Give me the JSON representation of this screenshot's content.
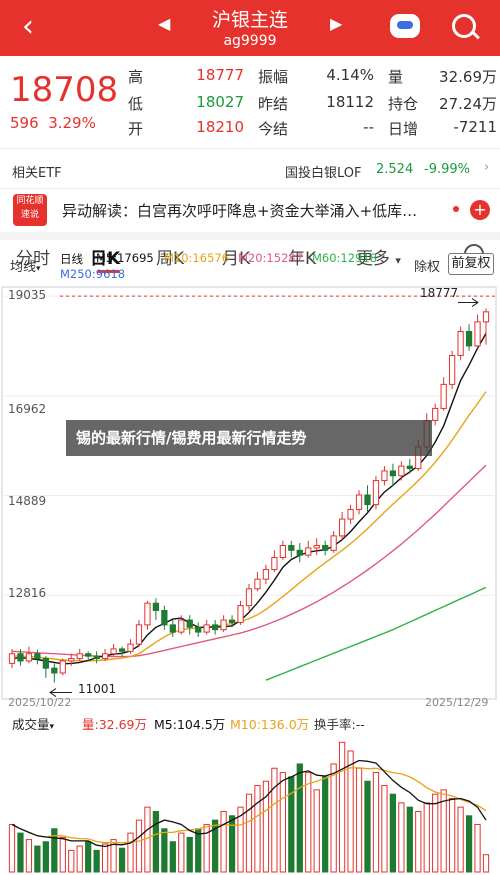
{
  "header": {
    "title": "沪银主连",
    "code": "ag9999",
    "back_icon": "chevron-left-icon",
    "prev_icon": "triangle-left-icon",
    "next_icon": "triangle-right-icon"
  },
  "quote": {
    "price": "18708",
    "change": "596",
    "change_pct": "3.29%",
    "grid": [
      {
        "label": "高",
        "value": "18777",
        "color": "#e5322d"
      },
      {
        "label": "振幅",
        "value": "4.14%",
        "color": "#333333"
      },
      {
        "label": "量",
        "value": "32.69万",
        "color": "#333333"
      },
      {
        "label": "低",
        "value": "18027",
        "color": "#1a9c3c"
      },
      {
        "label": "昨结",
        "value": "18112",
        "color": "#333333"
      },
      {
        "label": "持仓",
        "value": "27.24万",
        "color": "#333333"
      },
      {
        "label": "开",
        "value": "18210",
        "color": "#e5322d"
      },
      {
        "label": "今结",
        "value": "--",
        "color": "#333333"
      },
      {
        "label": "日增",
        "value": "-7211",
        "color": "#333333"
      }
    ]
  },
  "etf": {
    "label": "相关ETF",
    "fund_name": "国投白银LOF",
    "fund_price": "2.524",
    "fund_change": "-9.99%"
  },
  "news": {
    "logo_line1": "同花顺",
    "logo_line2": "速说",
    "text": "异动解读：白宫再次呼吁降息+资金大举涌入+低库…",
    "plus": "+"
  },
  "tabs": {
    "items": [
      "分时",
      "日K",
      "周K",
      "月K",
      "年K",
      "更多"
    ],
    "active": "日K"
  },
  "indicators": {
    "ma_button": "均线",
    "period": "日线",
    "m5": "M5:17695",
    "m10": "M10:16576",
    "m20": "M20:15287",
    "m60": "M60:12918",
    "m250": "M250:9618",
    "exright": "除权",
    "forward": "前复权",
    "colors": {
      "m5": "#111111",
      "m10": "#e8a317",
      "m20": "#e05a7a",
      "m60": "#2db34a",
      "m250": "#3a6fe0"
    }
  },
  "overlay_text": "锡的最新行情/锡费用最新行情走势",
  "chart_data": {
    "type": "candlestick",
    "y_ticks": [
      "19035",
      "16962",
      "14889",
      "12816"
    ],
    "x_start_label": "2025/10/22",
    "x_end_label": "2025/12/29",
    "high_annotation": "18777",
    "low_annotation": "11001",
    "candles": [
      [
        11400,
        11600,
        11300,
        11700
      ],
      [
        11600,
        11450,
        11350,
        11700
      ],
      [
        11450,
        11600,
        11400,
        11750
      ],
      [
        11600,
        11500,
        11380,
        11680
      ],
      [
        11500,
        11300,
        11100,
        11550
      ],
      [
        11300,
        11200,
        11001,
        11400
      ],
      [
        11200,
        11450,
        11150,
        11500
      ],
      [
        11450,
        11500,
        11350,
        11600
      ],
      [
        11500,
        11600,
        11450,
        11700
      ],
      [
        11600,
        11550,
        11450,
        11650
      ],
      [
        11550,
        11500,
        11400,
        11650
      ],
      [
        11500,
        11600,
        11450,
        11700
      ],
      [
        11600,
        11700,
        11550,
        11800
      ],
      [
        11700,
        11650,
        11550,
        11750
      ],
      [
        11650,
        11800,
        11600,
        11900
      ],
      [
        11800,
        12200,
        11750,
        12300
      ],
      [
        12200,
        12650,
        12100,
        12700
      ],
      [
        12650,
        12500,
        12300,
        12750
      ],
      [
        12500,
        12200,
        12100,
        12600
      ],
      [
        12200,
        12050,
        11950,
        12300
      ],
      [
        12050,
        12300,
        12000,
        12400
      ],
      [
        12300,
        12150,
        12000,
        12400
      ],
      [
        12150,
        12050,
        11950,
        12250
      ],
      [
        12050,
        12200,
        12000,
        12300
      ],
      [
        12200,
        12100,
        12000,
        12300
      ],
      [
        12100,
        12300,
        12050,
        12400
      ],
      [
        12300,
        12250,
        12150,
        12400
      ],
      [
        12250,
        12600,
        12200,
        12700
      ],
      [
        12600,
        12950,
        12500,
        13050
      ],
      [
        12950,
        13150,
        12900,
        13300
      ],
      [
        13150,
        13350,
        13050,
        13450
      ],
      [
        13350,
        13600,
        13300,
        13750
      ],
      [
        13600,
        13850,
        13550,
        13950
      ],
      [
        13850,
        13750,
        13600,
        13950
      ],
      [
        13750,
        13650,
        13500,
        13900
      ],
      [
        13650,
        13800,
        13600,
        13950
      ],
      [
        13800,
        13850,
        13650,
        14000
      ],
      [
        13850,
        13750,
        13650,
        13950
      ],
      [
        13750,
        14050,
        13700,
        14150
      ],
      [
        14050,
        14400,
        13950,
        14550
      ],
      [
        14400,
        14600,
        14300,
        14700
      ],
      [
        14600,
        14900,
        14500,
        15000
      ],
      [
        14900,
        14700,
        14550,
        15100
      ],
      [
        14700,
        15200,
        14600,
        15300
      ],
      [
        15200,
        15400,
        15100,
        15500
      ],
      [
        15400,
        15300,
        15100,
        15550
      ],
      [
        15300,
        15500,
        15200,
        15600
      ],
      [
        15500,
        15450,
        15350,
        15650
      ],
      [
        15450,
        15900,
        15400,
        16050
      ],
      [
        15900,
        16450,
        15800,
        16600
      ],
      [
        16450,
        16700,
        16350,
        16800
      ],
      [
        16700,
        17200,
        16650,
        17350
      ],
      [
        17200,
        17800,
        17100,
        17900
      ],
      [
        17800,
        18300,
        17700,
        18400
      ],
      [
        18300,
        18000,
        17900,
        18450
      ],
      [
        18000,
        18500,
        17950,
        18650
      ],
      [
        18500,
        18708,
        18027,
        18777
      ]
    ],
    "ma5": [
      11500,
      11520,
      11500,
      11480,
      11450,
      11420,
      11390,
      11400,
      11420,
      11460,
      11520,
      11560,
      11590,
      11610,
      11660,
      11770,
      11990,
      12150,
      12230,
      12320,
      12340,
      12240,
      12150,
      12150,
      12160,
      12160,
      12180,
      12290,
      12460,
      12660,
      12880,
      13130,
      13400,
      13560,
      13650,
      13710,
      13740,
      13760,
      13840,
      13970,
      14140,
      14340,
      14530,
      14760,
      14960,
      15100,
      15260,
      15380,
      15510,
      15720,
      16000,
      16340,
      16810,
      17280,
      17600,
      17950,
      18260
    ],
    "ma10": [
      11550,
      11550,
      11540,
      11530,
      11510,
      11490,
      11470,
      11460,
      11455,
      11450,
      11460,
      11470,
      11490,
      11510,
      11540,
      11600,
      11720,
      11840,
      11950,
      12040,
      12100,
      12120,
      12140,
      12150,
      12170,
      12200,
      12230,
      12270,
      12330,
      12410,
      12520,
      12650,
      12790,
      12930,
      13080,
      13220,
      13360,
      13490,
      13620,
      13750,
      13890,
      14040,
      14200,
      14370,
      14540,
      14710,
      14870,
      15030,
      15200,
      15380,
      15580,
      15800,
      16040,
      16300,
      16560,
      16800,
      17050
    ],
    "ma20": [
      11650,
      11640,
      11630,
      11620,
      11610,
      11600,
      11590,
      11580,
      11570,
      11560,
      11550,
      11545,
      11540,
      11540,
      11545,
      11560,
      11590,
      11630,
      11670,
      11710,
      11750,
      11790,
      11830,
      11870,
      11910,
      11950,
      11990,
      12030,
      12080,
      12140,
      12200,
      12270,
      12340,
      12420,
      12500,
      12590,
      12680,
      12780,
      12880,
      12990,
      13100,
      13220,
      13340,
      13470,
      13600,
      13740,
      13880,
      14030,
      14180,
      14340,
      14500,
      14670,
      14840,
      15010,
      15180,
      15350,
      15520
    ],
    "ma60_start_index": 30,
    "ma60": [
      11050,
      11120,
      11190,
      11260,
      11330,
      11400,
      11470,
      11540,
      11610,
      11680,
      11750,
      11820,
      11890,
      11960,
      12030,
      12100,
      12180,
      12260,
      12340,
      12420,
      12500,
      12580,
      12660,
      12740,
      12820,
      12900,
      12980
    ],
    "volume_header": {
      "label": "成交量",
      "vol": "量:32.69万",
      "m5": "M5:104.5万",
      "m10": "M10:136.0万",
      "turnover": "换手率:--"
    },
    "volume": [
      22,
      18,
      15,
      12,
      14,
      20,
      16,
      10,
      12,
      14,
      10,
      13,
      15,
      11,
      18,
      24,
      30,
      28,
      20,
      14,
      18,
      16,
      20,
      22,
      24,
      28,
      26,
      30,
      36,
      40,
      42,
      48,
      46,
      44,
      50,
      46,
      38,
      44,
      50,
      60,
      56,
      48,
      42,
      46,
      40,
      36,
      32,
      30,
      28,
      32,
      36,
      38,
      34,
      30,
      26,
      22,
      8
    ],
    "volume_up": [
      true,
      false,
      true,
      false,
      false,
      false,
      true,
      true,
      true,
      false,
      false,
      true,
      true,
      false,
      true,
      true,
      true,
      false,
      false,
      false,
      true,
      false,
      false,
      true,
      false,
      true,
      false,
      true,
      true,
      true,
      true,
      true,
      true,
      false,
      false,
      true,
      true,
      false,
      true,
      true,
      true,
      true,
      false,
      true,
      true,
      false,
      true,
      false,
      true,
      true,
      true,
      true,
      true,
      true,
      false,
      true,
      true
    ]
  }
}
